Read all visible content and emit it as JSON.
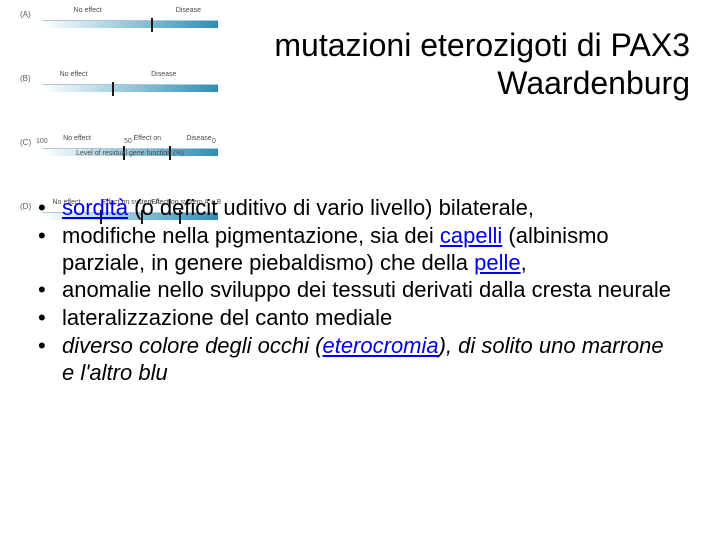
{
  "title_line1": "mutazioni eterozigoti di PAX3",
  "title_line2": "Waardenburg",
  "diagram": {
    "rows": [
      {
        "tag": "(A)",
        "ticks": [
          0.62
        ],
        "labels": [
          {
            "text": "No effect",
            "x": 0.18
          },
          {
            "text": "Disease",
            "x": 0.76
          }
        ]
      },
      {
        "tag": "(B)",
        "ticks": [
          0.4
        ],
        "labels": [
          {
            "text": "No effect",
            "x": 0.1
          },
          {
            "text": "Disease",
            "x": 0.62
          }
        ]
      },
      {
        "tag": "(C)",
        "ticks": [
          0.46,
          0.72
        ],
        "labels": [
          {
            "text": "No effect",
            "x": 0.12
          },
          {
            "text": "Effect on",
            "x": 0.52
          },
          {
            "text": "Disease",
            "x": 0.82
          }
        ]
      },
      {
        "tag": "(D)",
        "ticks": [
          0.33,
          0.56,
          0.78
        ],
        "labels": [
          {
            "text": "No effect",
            "x": 0.06
          },
          {
            "text": "Effect on system A",
            "x": 0.34
          },
          {
            "text": "Effect on system A + B",
            "x": 0.62
          }
        ]
      }
    ],
    "axis_ticks": [
      {
        "text": "100",
        "x": 0.0
      },
      {
        "text": "50",
        "x": 0.5
      },
      {
        "text": "0",
        "x": 1.0
      }
    ],
    "axis_title": "Level of residual gene function (%)"
  },
  "bullets": [
    {
      "parts": [
        {
          "t": "sordità",
          "link": true
        },
        {
          "t": " (o deficit uditivo di vario livello) bilaterale,"
        }
      ]
    },
    {
      "parts": [
        {
          "t": "modifiche nella pigmentazione, sia dei "
        },
        {
          "t": "capelli",
          "link": true
        },
        {
          "t": " (albinismo parziale, in genere piebaldismo) che della "
        },
        {
          "t": "pelle",
          "link": true
        },
        {
          "t": ","
        }
      ]
    },
    {
      "parts": [
        {
          "t": "anomalie nello sviluppo dei tessuti derivati dalla cresta neurale"
        }
      ]
    },
    {
      "parts": [
        {
          "t": "lateralizzazione del canto mediale"
        }
      ]
    },
    {
      "parts": [
        {
          "t": "diverso colore degli occhi (",
          "italic": true
        },
        {
          "t": "eterocromia",
          "link": true,
          "italic": true
        },
        {
          "t": "), di solito uno marrone e l'altro blu",
          "italic": true
        }
      ]
    }
  ]
}
